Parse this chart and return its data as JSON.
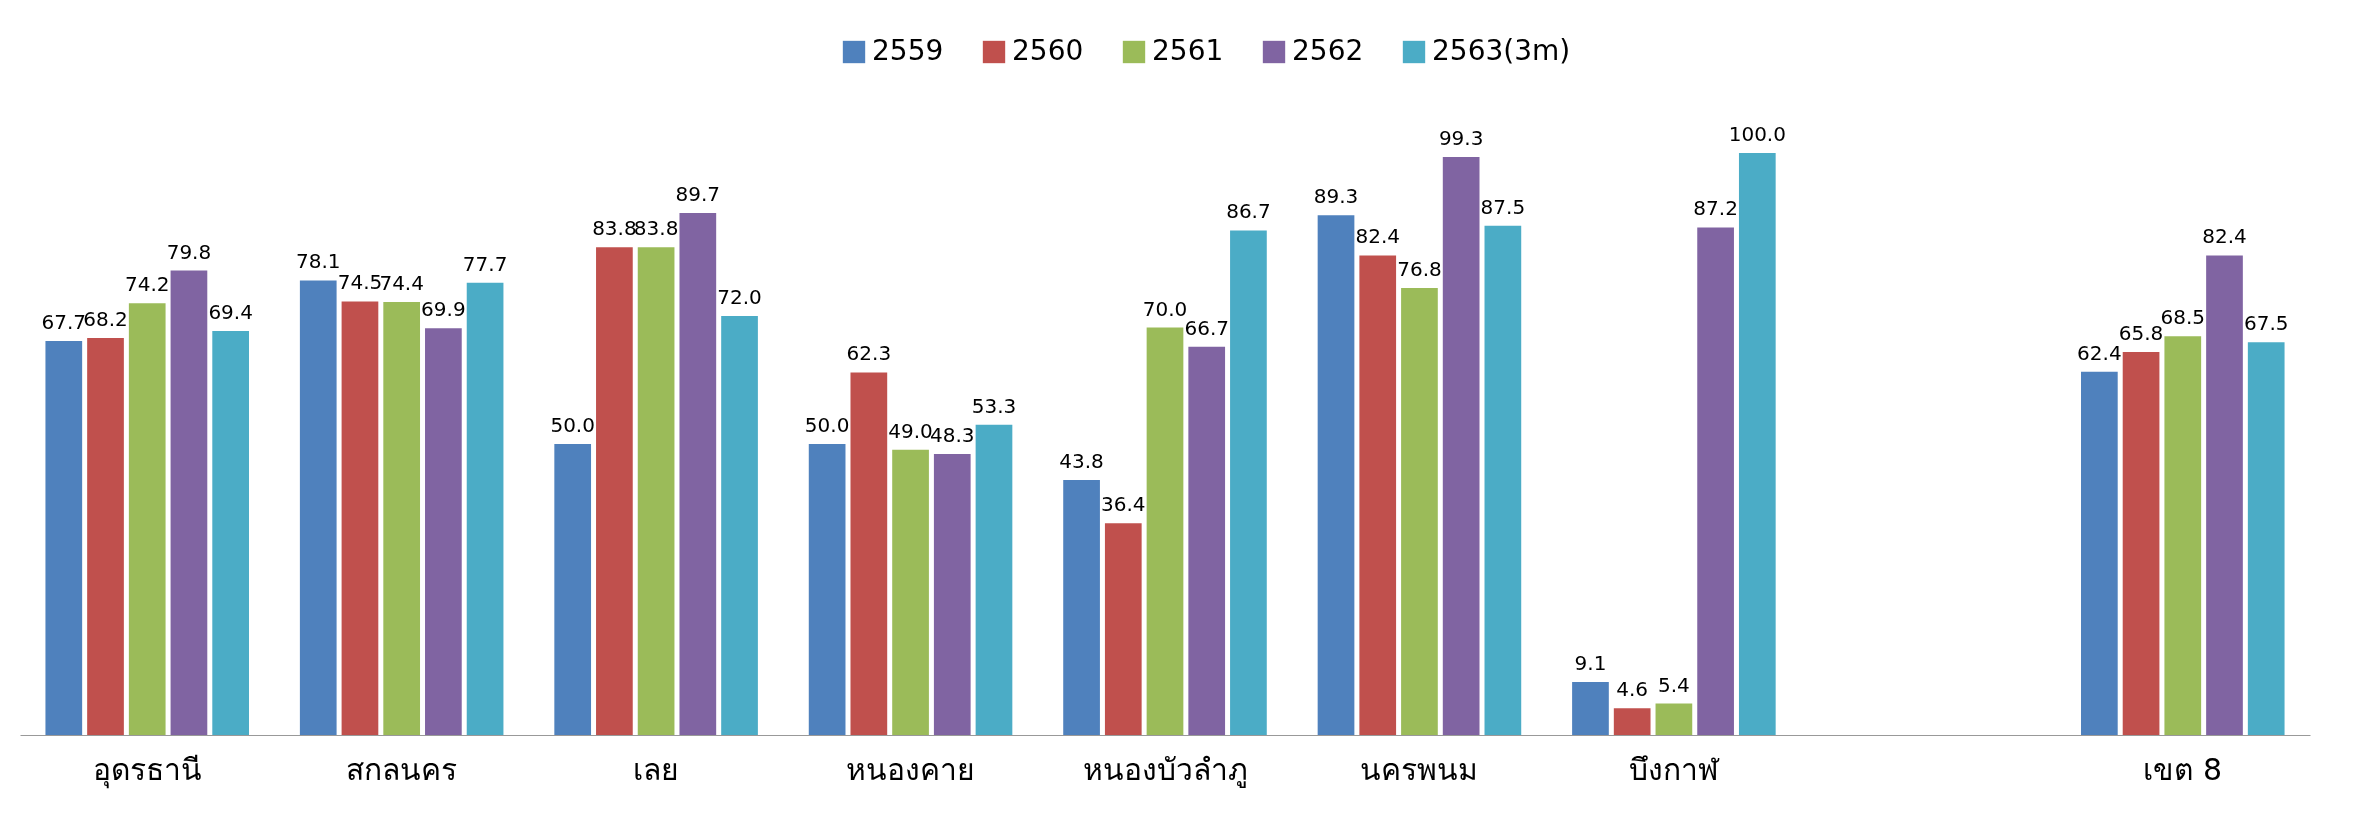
{
  "chart_data": {
    "type": "bar",
    "categories": [
      "อุดรธานี",
      "สกลนคร",
      "เลย",
      "หนองคาย",
      "หนองบัวลำภู",
      "นครพนม",
      "บึงกาฬ",
      null,
      "เขต 8"
    ],
    "series": [
      {
        "name": "2559",
        "color": "#4f81bd",
        "values": [
          67.7,
          78.1,
          50.0,
          50.0,
          43.8,
          89.3,
          9.1,
          null,
          62.4
        ],
        "value_labels": [
          "67.7",
          "78.1",
          "50.0",
          "50.0",
          "43.8",
          "89.3",
          "9.1",
          null,
          "62.4"
        ]
      },
      {
        "name": "2560",
        "color": "#c0504d",
        "values": [
          68.2,
          74.5,
          83.8,
          62.3,
          36.4,
          82.4,
          4.6,
          null,
          65.8
        ],
        "value_labels": [
          "68.2",
          "74.5",
          "83.8",
          "62.3",
          "36.4",
          "82.4",
          "4.6",
          null,
          "65.8"
        ]
      },
      {
        "name": "2561",
        "color": "#9bbb59",
        "values": [
          74.2,
          74.4,
          83.8,
          49.0,
          70.0,
          76.8,
          5.4,
          null,
          68.5
        ],
        "value_labels": [
          "74.2",
          "74.4",
          "83.8",
          "49.0",
          "70.0",
          "76.8",
          "5.4",
          null,
          "68.5"
        ]
      },
      {
        "name": "2562",
        "color": "#8064a2",
        "values": [
          79.8,
          69.9,
          89.7,
          48.3,
          66.7,
          99.3,
          87.2,
          null,
          82.4
        ],
        "value_labels": [
          "79.8",
          "69.9",
          "89.7",
          "48.3",
          "66.7",
          "99.3",
          "87.2",
          null,
          "82.4"
        ]
      },
      {
        "name": "2563(3m)",
        "color": "#4bacc6",
        "values": [
          69.4,
          77.7,
          72.0,
          53.3,
          86.7,
          87.5,
          100.0,
          null,
          67.5
        ],
        "value_labels": [
          "69.4",
          "77.7",
          "72.0",
          "53.3",
          "86.7",
          "87.5",
          "100.0",
          null,
          "67.5"
        ]
      }
    ],
    "legend": "top",
    "grid": false
  }
}
